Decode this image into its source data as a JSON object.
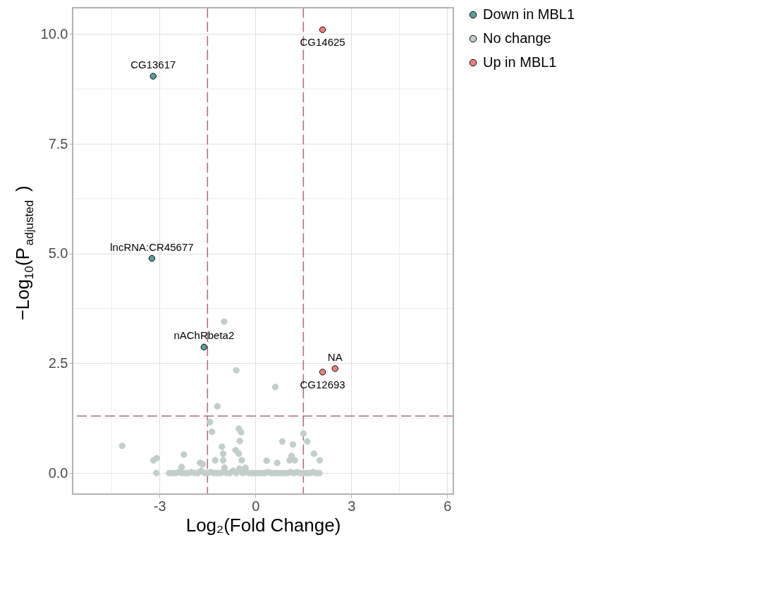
{
  "chart_data": {
    "type": "scatter",
    "xlabel": "Log₂(Fold Change)",
    "ylabel": "−Log$_{10}$(P$_{adjusted}$)",
    "xlim": [
      -5.72,
      6.19
    ],
    "ylim": [
      -0.48,
      10.6
    ],
    "xticks": [
      {
        "value": -3,
        "label": "-3"
      },
      0,
      3,
      6
    ],
    "yticks": [
      {
        "value": 0,
        "label": "0.0"
      },
      2.5,
      {
        "value": 5,
        "label": "5.0"
      },
      7.5,
      {
        "value": 10,
        "label": "10.0"
      }
    ],
    "grid": true,
    "legend": "right",
    "marker": "circle",
    "series": [
      {
        "name": "Down in MBL1",
        "color": "#5f9ea0",
        "x": [
          -3.2,
          -3.24,
          -1.61
        ],
        "values": [
          9.04,
          4.89,
          2.87
        ]
      },
      {
        "name": "No change",
        "color": "#c2cecb",
        "x": [
          -0.98,
          -0.6,
          0.62,
          -1.19,
          -1.42,
          -1.36,
          -0.52,
          -0.45,
          -0.49,
          1.5,
          1.62,
          0.84,
          1.17,
          -4.17,
          -1.05,
          -0.62,
          -1.01,
          -0.52,
          -2.24,
          1.83,
          1.13,
          -3.09,
          -3.19,
          -1.26,
          -1.01,
          -0.43,
          0.35,
          1.07,
          1.23,
          2.01,
          -1.73,
          -1.65,
          0.68,
          -2.31,
          -0.97,
          -0.31,
          -3.1,
          -2.7,
          -2.6,
          -2.5,
          -2.4,
          -2.3,
          -2.2,
          -2.1,
          -2.0,
          -1.9,
          -1.8,
          -1.7,
          -1.6,
          -1.5,
          -1.4,
          -1.3,
          -1.2,
          -1.1,
          -1.0,
          -0.9,
          -0.8,
          -0.7,
          -0.6,
          -0.5,
          -0.4,
          -0.3,
          -0.2,
          -0.1,
          0.0,
          0.1,
          0.2,
          0.3,
          0.4,
          0.5,
          0.6,
          0.7,
          0.8,
          0.9,
          1.0,
          1.1,
          1.2,
          1.3,
          1.4,
          1.5,
          1.6,
          1.7,
          1.8,
          1.9,
          2.0
        ],
        "values": [
          3.45,
          2.34,
          1.96,
          1.52,
          1.16,
          0.94,
          1.01,
          0.93,
          0.73,
          0.9,
          0.72,
          0.72,
          0.65,
          0.62,
          0.6,
          0.52,
          0.44,
          0.44,
          0.42,
          0.44,
          0.39,
          0.34,
          0.29,
          0.29,
          0.29,
          0.29,
          0.28,
          0.29,
          0.29,
          0.29,
          0.23,
          0.2,
          0.23,
          0.14,
          0.12,
          0.12,
          0.0,
          0.0,
          0.0,
          0.0,
          0.02,
          0.0,
          0.0,
          0.0,
          0.02,
          0.0,
          0.0,
          0.05,
          0.0,
          0.0,
          0.02,
          0.0,
          0.0,
          0.0,
          0.02,
          0.0,
          0.0,
          0.05,
          0.0,
          0.1,
          0.0,
          0.02,
          0.0,
          0.0,
          0.0,
          0.0,
          0.0,
          0.0,
          0.02,
          0.0,
          0.0,
          0.0,
          0.0,
          0.0,
          0.0,
          0.02,
          0.0,
          0.02,
          0.0,
          0.0,
          0.0,
          0.0,
          0.02,
          0.0,
          0.0
        ]
      },
      {
        "name": "Up in MBL1",
        "color": "#f08080",
        "x": [
          2.1,
          2.49,
          2.1
        ],
        "values": [
          10.1,
          2.38,
          2.3
        ]
      }
    ],
    "ref_lines": [
      {
        "axis": "x",
        "value": -1.5,
        "color": "#a8698a",
        "line_style": "dashed"
      },
      {
        "axis": "x",
        "value": 1.5,
        "color": "#a8698a",
        "line_style": "dashed"
      },
      {
        "axis": "y",
        "value": 1.3,
        "color": "#a8698a",
        "line_style": "dashed"
      }
    ],
    "annotations": [
      {
        "text": "CG14625",
        "x": 2.1,
        "y": 10.1
      },
      {
        "text": "CG13617",
        "x": -3.2,
        "y": 9.04
      },
      {
        "text": "lncRNA:CR45677",
        "x": -3.24,
        "y": 4.89
      },
      {
        "text": "nAChRbeta2",
        "x": -1.61,
        "y": 2.87
      },
      {
        "text": "NA",
        "x": 2.49,
        "y": 2.38
      },
      {
        "text": "CG12693",
        "x": 2.1,
        "y": 2.3
      }
    ]
  }
}
